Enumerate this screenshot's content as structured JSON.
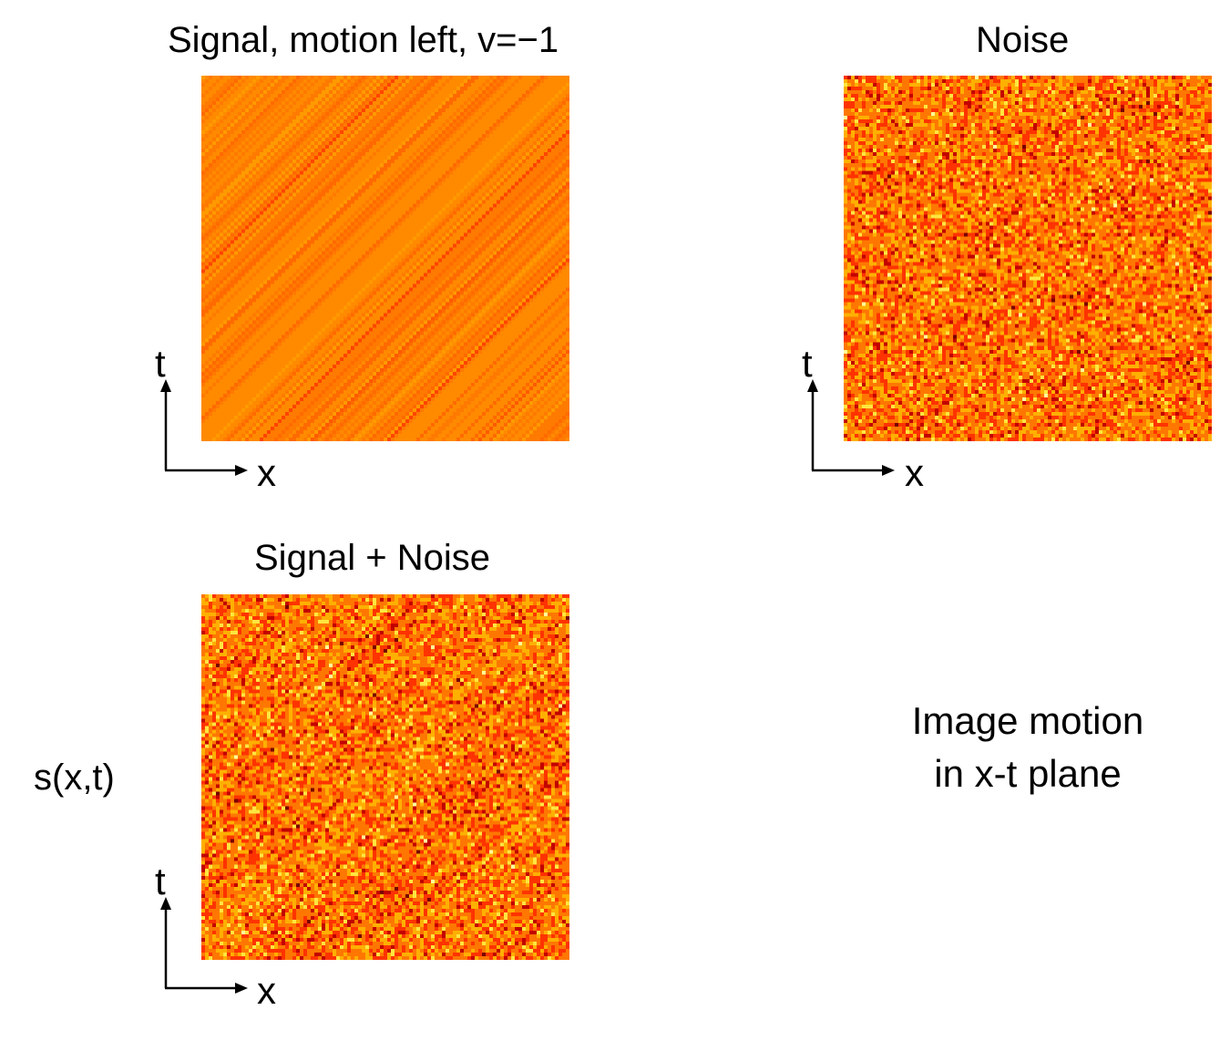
{
  "panels": {
    "signal": {
      "title": "Signal, motion left, v=−1",
      "x_label": "x",
      "t_label": "t"
    },
    "noise": {
      "title": "Noise",
      "x_label": "x",
      "t_label": "t"
    },
    "signal_noise": {
      "title": "Signal + Noise",
      "x_label": "x",
      "t_label": "t"
    }
  },
  "side_label": "s(x,t)",
  "caption": {
    "line1": "Image motion",
    "line2": "in x-t plane"
  },
  "colors": {
    "colormap": [
      "#7a0000",
      "#c20000",
      "#ff3300",
      "#ff7700",
      "#ffb000",
      "#ffe640",
      "#ffff9a"
    ],
    "axis": "#000000"
  }
}
